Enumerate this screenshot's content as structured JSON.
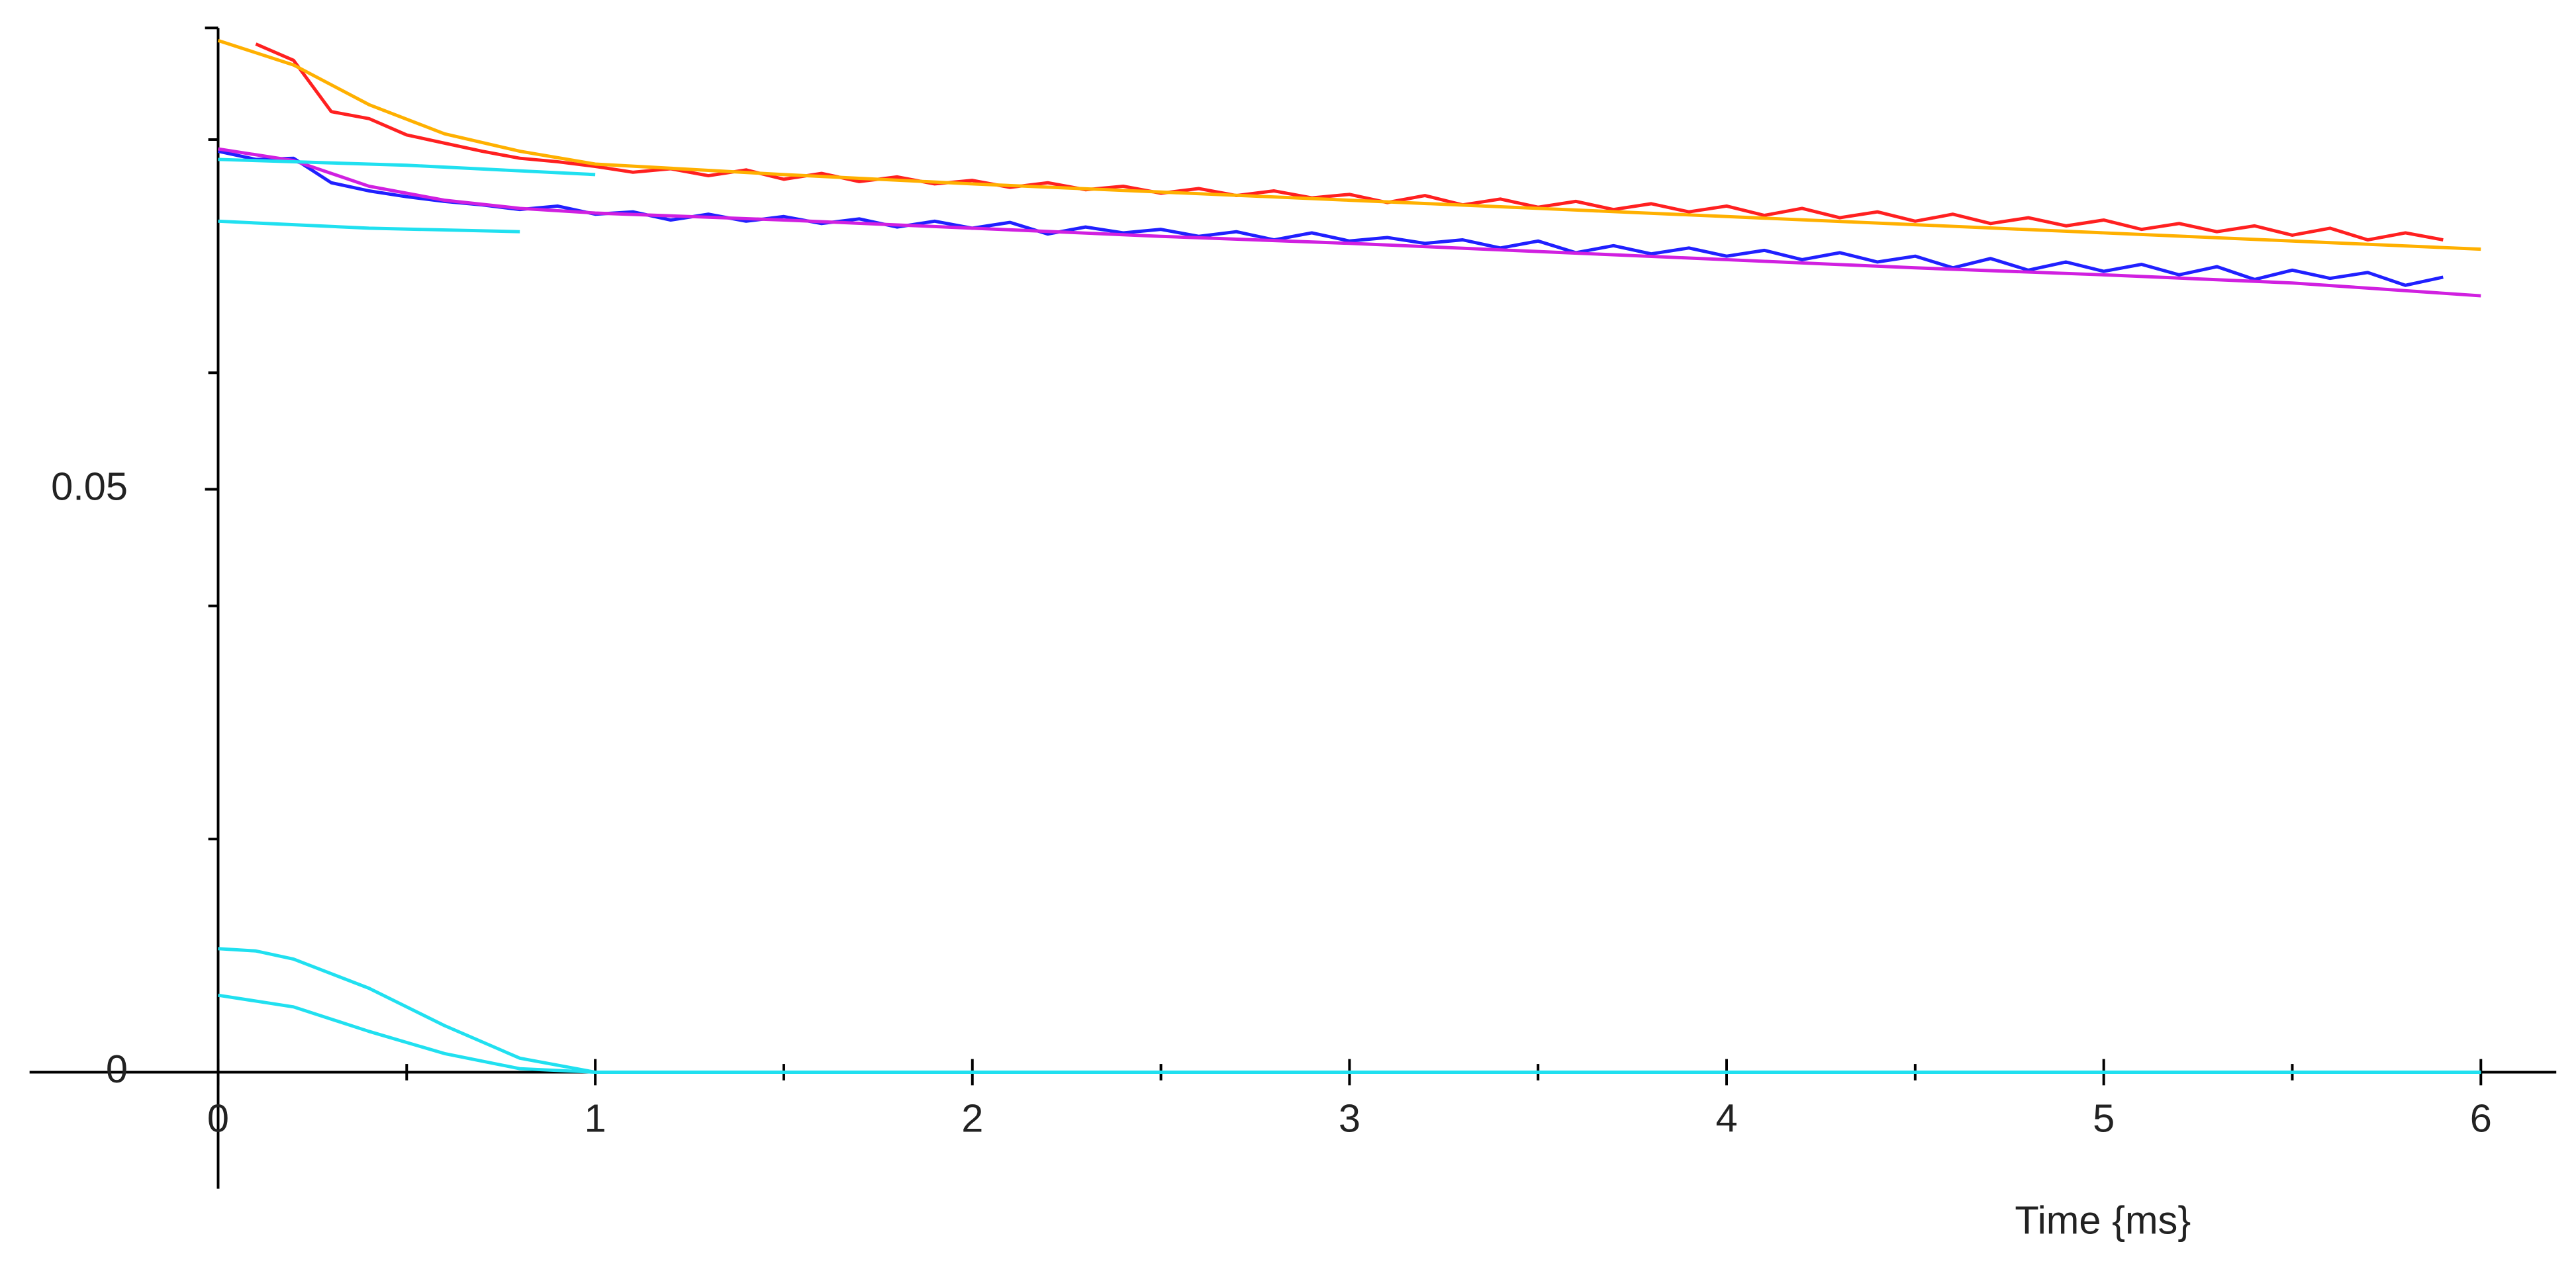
{
  "chart_data": {
    "type": "line",
    "x_label": "Time {ms}",
    "xlim": [
      -0.5,
      6.2
    ],
    "ylim": [
      -0.01,
      0.09
    ],
    "xticks": [
      0,
      1,
      2,
      3,
      4,
      5,
      6
    ],
    "xminorticks": [
      0.5,
      1.5,
      2.5,
      3.5,
      4.5,
      5.5
    ],
    "yticks": [
      0,
      0.05
    ],
    "yminorticks": [
      0.02,
      0.04,
      0.06,
      0.08
    ],
    "grid": false,
    "series": [
      {
        "color": "#ff2020",
        "x": [
          0.1,
          0.2,
          0.3,
          0.4,
          0.5,
          0.6,
          0.7,
          0.8,
          0.9,
          1.0,
          1.1,
          1.2,
          1.3,
          1.4,
          1.5,
          1.6,
          1.7,
          1.8,
          1.9,
          2.0,
          2.1,
          2.2,
          2.3,
          2.4,
          2.5,
          2.6,
          2.7,
          2.8,
          2.9,
          3.0,
          3.1,
          3.2,
          3.3,
          3.4,
          3.5,
          3.6,
          3.7,
          3.8,
          3.9,
          4.0,
          4.1,
          4.2,
          4.3,
          4.4,
          4.5,
          4.6,
          4.7,
          4.8,
          4.9,
          5.0,
          5.1,
          5.2,
          5.3,
          5.4,
          5.5,
          5.6,
          5.7,
          5.8,
          5.9
        ],
        "values": [
          0.0882,
          0.0868,
          0.0824,
          0.0818,
          0.0804,
          0.0797,
          0.079,
          0.0784,
          0.0781,
          0.0777,
          0.0772,
          0.0775,
          0.0769,
          0.0774,
          0.0766,
          0.0771,
          0.0764,
          0.0768,
          0.0762,
          0.0765,
          0.0759,
          0.0763,
          0.0757,
          0.076,
          0.0754,
          0.0758,
          0.0752,
          0.0756,
          0.075,
          0.0753,
          0.0746,
          0.0752,
          0.0744,
          0.0749,
          0.0742,
          0.0747,
          0.074,
          0.0745,
          0.0738,
          0.0743,
          0.0735,
          0.0741,
          0.0733,
          0.0738,
          0.073,
          0.0736,
          0.0728,
          0.0733,
          0.0726,
          0.0731,
          0.0723,
          0.0728,
          0.0721,
          0.0726,
          0.0718,
          0.0724,
          0.0714,
          0.072,
          0.0714
        ]
      },
      {
        "color": "#ffb000",
        "x": [
          0,
          0.2,
          0.4,
          0.6,
          0.8,
          1,
          1.5,
          2,
          2.5,
          3,
          3.5,
          4,
          4.5,
          5,
          5.5,
          6
        ],
        "values": [
          0.0885,
          0.0864,
          0.083,
          0.0805,
          0.079,
          0.0779,
          0.077,
          0.0762,
          0.0755,
          0.0748,
          0.0741,
          0.0734,
          0.0727,
          0.072,
          0.0713,
          0.0706
        ]
      },
      {
        "color": "#2020ff",
        "x": [
          0,
          0.1,
          0.2,
          0.3,
          0.4,
          0.5,
          0.6,
          0.7,
          0.8,
          0.9,
          1.0,
          1.1,
          1.2,
          1.3,
          1.4,
          1.5,
          1.6,
          1.7,
          1.8,
          1.9,
          2.0,
          2.1,
          2.2,
          2.3,
          2.4,
          2.5,
          2.6,
          2.7,
          2.8,
          2.9,
          3.0,
          3.1,
          3.2,
          3.3,
          3.4,
          3.5,
          3.6,
          3.7,
          3.8,
          3.9,
          4.0,
          4.1,
          4.2,
          4.3,
          4.4,
          4.5,
          4.6,
          4.7,
          4.8,
          4.9,
          5.0,
          5.1,
          5.2,
          5.3,
          5.4,
          5.5,
          5.6,
          5.7,
          5.8,
          5.9
        ],
        "values": [
          0.079,
          0.0783,
          0.0784,
          0.0763,
          0.0756,
          0.0751,
          0.0747,
          0.0744,
          0.074,
          0.0743,
          0.0736,
          0.0738,
          0.0731,
          0.0736,
          0.073,
          0.0734,
          0.0728,
          0.0732,
          0.0725,
          0.073,
          0.0724,
          0.0729,
          0.0719,
          0.0725,
          0.072,
          0.0723,
          0.0717,
          0.0721,
          0.0714,
          0.072,
          0.0713,
          0.0716,
          0.0711,
          0.0714,
          0.0707,
          0.0713,
          0.0703,
          0.0709,
          0.0702,
          0.0707,
          0.07,
          0.0705,
          0.0697,
          0.0703,
          0.0695,
          0.07,
          0.069,
          0.0698,
          0.0688,
          0.0695,
          0.0687,
          0.0693,
          0.0684,
          0.0691,
          0.068,
          0.0688,
          0.0681,
          0.0686,
          0.0675,
          0.0682
        ]
      },
      {
        "color": "#d020e0",
        "x": [
          0,
          0.2,
          0.4,
          0.6,
          0.8,
          1,
          1.5,
          2,
          2.5,
          3,
          3.5,
          4,
          4.5,
          5,
          5.5,
          6
        ],
        "values": [
          0.0792,
          0.0782,
          0.076,
          0.0748,
          0.0741,
          0.0737,
          0.0731,
          0.0724,
          0.0717,
          0.0711,
          0.0704,
          0.0697,
          0.069,
          0.0684,
          0.0677,
          0.0666
        ]
      },
      {
        "color": "#20e0f0",
        "x": [
          0,
          0.5,
          1
        ],
        "values": [
          0.0783,
          0.0778,
          0.077
        ]
      },
      {
        "color": "#20e0f0",
        "x": [
          0,
          0.4,
          0.8
        ],
        "values": [
          0.073,
          0.0724,
          0.0721
        ]
      },
      {
        "color": "#20e0f0",
        "x": [
          0,
          0.1,
          0.2,
          0.4,
          0.6,
          0.8,
          1.0,
          6
        ],
        "values": [
          0.0106,
          0.0104,
          0.0097,
          0.0072,
          0.004,
          0.0012,
          0,
          0
        ]
      },
      {
        "color": "#20e0f0",
        "x": [
          0,
          0.2,
          0.4,
          0.6,
          0.8,
          1,
          6
        ],
        "values": [
          0.0066,
          0.0056,
          0.0035,
          0.0016,
          0.0003,
          0,
          0
        ]
      }
    ]
  }
}
